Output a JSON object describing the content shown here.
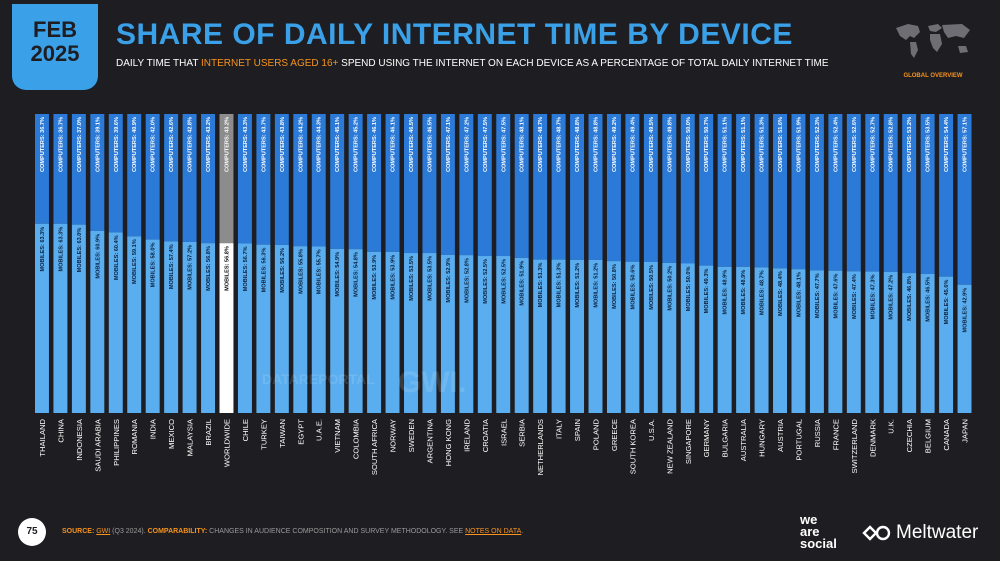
{
  "header": {
    "month": "FEB",
    "year": "2025",
    "title": "SHARE OF DAILY INTERNET TIME BY DEVICE",
    "subtitle_pre": "DAILY TIME THAT ",
    "subtitle_highlight": "INTERNET USERS AGED 16+",
    "subtitle_post": " SPEND USING THE INTERNET ON EACH DEVICE AS A PERCENTAGE OF TOTAL DAILY INTERNET TIME",
    "map_icon": "world-map-icon",
    "badge": "GLOBAL OVERVIEW"
  },
  "footer": {
    "page": "75",
    "source_label": "SOURCE:",
    "source_link": "GWI",
    "source_text": " (Q3 2024). ",
    "comparability_label": "COMPARABILITY:",
    "comparability_text": " CHANGES IN AUDIENCE COMPOSITION AND SURVEY METHODOLOGY. SEE ",
    "notes_link": "NOTES ON DATA",
    "notes_end": ".",
    "brand1": "we are social",
    "brand2": "Meltwater",
    "brand2_icon": "meltwater-logo-icon"
  },
  "watermark": {
    "text1": "DATAREPORTAL",
    "text2": "GWI."
  },
  "colors": {
    "mobile": "#5aaef0",
    "computer": "#2b7ad8",
    "worldwide_mobile": "#ffffff",
    "worldwide_computer": "#8c8c8c",
    "accent": "#f7931e",
    "background": "#1e1e22"
  },
  "chart_data": {
    "type": "bar",
    "stacked": true,
    "orientation": "vertical",
    "ylim": [
      0,
      100
    ],
    "mobile_prefix": "MOBILES:",
    "computer_prefix": "COMPUTERS:",
    "highlight_category": "WORLDWIDE",
    "categories": [
      "THAILAND",
      "CHINA",
      "INDONESIA",
      "SAUDI ARABIA",
      "PHILIPPINES",
      "ROMANIA",
      "INDIA",
      "MEXICO",
      "MALAYSIA",
      "BRAZIL",
      "WORLDWIDE",
      "CHILE",
      "TURKEY",
      "TAIWAN",
      "EGYPT",
      "U.A.E.",
      "VIETNAM",
      "COLOMBIA",
      "SOUTH AFRICA",
      "NORWAY",
      "SWEDEN",
      "ARGENTINA",
      "HONG KONG",
      "IRELAND",
      "CROATIA",
      "ISRAEL",
      "SERBIA",
      "NETHERLANDS",
      "ITALY",
      "SPAIN",
      "POLAND",
      "GREECE",
      "SOUTH KOREA",
      "U.S.A.",
      "NEW ZEALAND",
      "SINGAPORE",
      "GERMANY",
      "BULGARIA",
      "AUSTRALIA",
      "HUNGARY",
      "AUSTRIA",
      "PORTUGAL",
      "RUSSIA",
      "FRANCE",
      "SWITZERLAND",
      "DENMARK",
      "U.K.",
      "CZECHIA",
      "BELGIUM",
      "CANADA",
      "JAPAN"
    ],
    "series": [
      {
        "name": "MOBILES",
        "values": [
          63.3,
          63.3,
          63.0,
          60.9,
          60.4,
          59.1,
          58.0,
          57.4,
          57.2,
          56.8,
          56.8,
          56.7,
          56.3,
          56.2,
          55.8,
          55.7,
          54.9,
          54.8,
          53.9,
          53.9,
          53.5,
          53.5,
          52.9,
          52.8,
          52.5,
          52.5,
          51.9,
          51.3,
          51.3,
          51.2,
          51.2,
          50.8,
          50.6,
          50.5,
          50.2,
          50.0,
          49.3,
          48.9,
          48.9,
          48.7,
          48.4,
          48.1,
          47.7,
          47.6,
          47.4,
          47.3,
          47.2,
          46.8,
          46.5,
          45.6,
          42.9
        ]
      },
      {
        "name": "COMPUTERS",
        "values": [
          36.7,
          36.7,
          37.0,
          39.1,
          39.6,
          40.9,
          42.0,
          42.6,
          42.8,
          43.2,
          43.2,
          43.3,
          43.7,
          43.8,
          44.2,
          44.3,
          45.1,
          45.2,
          46.1,
          46.1,
          46.5,
          46.5,
          47.1,
          47.2,
          47.5,
          47.5,
          48.1,
          48.7,
          48.7,
          48.8,
          48.8,
          49.2,
          49.4,
          49.5,
          49.8,
          50.0,
          50.7,
          51.1,
          51.1,
          51.3,
          51.6,
          51.9,
          52.3,
          52.4,
          52.6,
          52.7,
          52.8,
          53.2,
          53.5,
          54.4,
          57.1
        ]
      }
    ]
  }
}
